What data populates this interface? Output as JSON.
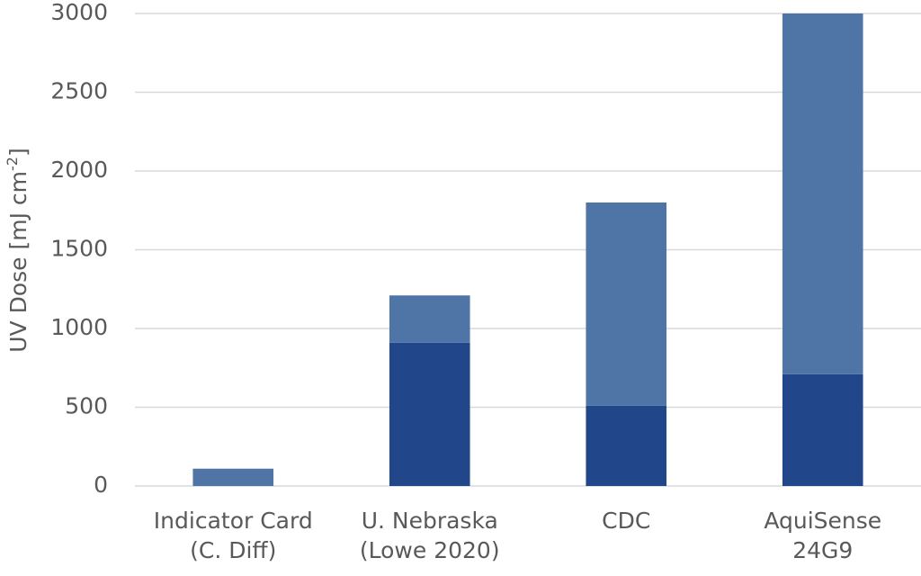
{
  "chart_data": {
    "type": "stacked_bar",
    "y_label": {
      "text": "UV Dose [mJ cm",
      "superscript": "-2",
      "suffix": "]"
    },
    "categories": [
      [
        "Indicator Card",
        "(C. Diff)"
      ],
      [
        "U. Nebraska",
        "(Lowe 2020)"
      ],
      [
        "CDC"
      ],
      [
        "AquiSense",
        "24G9"
      ]
    ],
    "series": [
      {
        "color": "#21468a",
        "values": [
          0,
          910,
          510,
          710
        ]
      },
      {
        "color": "#4e75a6",
        "values": [
          110,
          300,
          1290,
          2290
        ]
      }
    ],
    "ylim": [
      0,
      3000
    ],
    "yticks": [
      0,
      500,
      1000,
      1500,
      2000,
      2500,
      3000
    ],
    "grid": true
  }
}
